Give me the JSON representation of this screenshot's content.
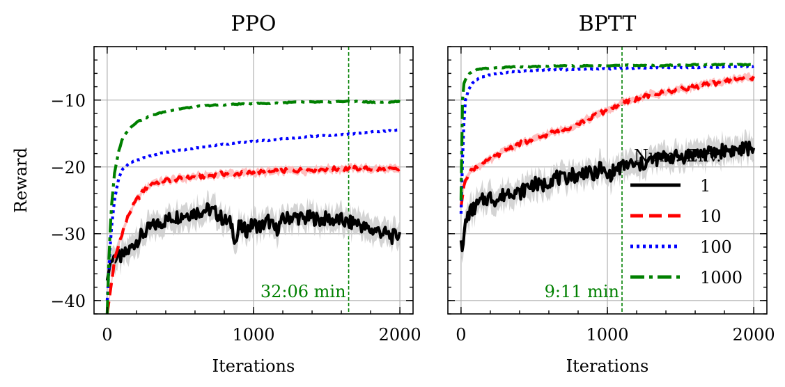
{
  "chart_data": [
    {
      "type": "line",
      "title": "PPO",
      "xlabel": "Iterations",
      "ylabel": "Reward",
      "xlim": [
        -90,
        2090
      ],
      "ylim": [
        -42,
        -2
      ],
      "xticks": [
        0,
        1000,
        2000
      ],
      "xtick_labels": [
        "0",
        "1000",
        "2000"
      ],
      "yticks": [
        -40,
        -30,
        -20,
        -10
      ],
      "ytick_labels": [
        "−40",
        "−30",
        "−20",
        "−10"
      ],
      "grid": true,
      "vline": {
        "x": 1650,
        "color": "#008000",
        "label": "32:06 min"
      },
      "series": [
        {
          "name": "1",
          "color": "#000000",
          "dash": "solid",
          "x": [
            0,
            25,
            50,
            100,
            150,
            200,
            250,
            300,
            350,
            400,
            450,
            500,
            550,
            600,
            650,
            700,
            750,
            800,
            850,
            880,
            900,
            950,
            1000,
            1050,
            1100,
            1150,
            1200,
            1250,
            1300,
            1350,
            1400,
            1450,
            1500,
            1550,
            1600,
            1650,
            1700,
            1750,
            1800,
            1850,
            1900,
            1950,
            2000
          ],
          "y": [
            -37,
            -34,
            -33.5,
            -33.5,
            -32.5,
            -31,
            -30,
            -29,
            -28.5,
            -28,
            -27.5,
            -27.3,
            -27,
            -26.8,
            -26.5,
            -26.4,
            -27,
            -28,
            -28.5,
            -31.5,
            -29,
            -29.5,
            -28.5,
            -29,
            -28,
            -29.5,
            -28,
            -27.5,
            -27.5,
            -27.8,
            -27.5,
            -28,
            -27.7,
            -28,
            -28,
            -28.5,
            -28.2,
            -29,
            -29.5,
            -29.5,
            -30,
            -30.5,
            -30
          ]
        },
        {
          "name": "10",
          "color": "#ff0000",
          "dash": "dashed",
          "x": [
            0,
            25,
            50,
            100,
            150,
            200,
            250,
            300,
            400,
            500,
            600,
            700,
            800,
            900,
            1000,
            1100,
            1200,
            1300,
            1400,
            1500,
            1600,
            1700,
            1800,
            1900,
            2000
          ],
          "y": [
            -42,
            -38,
            -34,
            -30,
            -27,
            -25,
            -23.5,
            -22.5,
            -22,
            -21.8,
            -21.5,
            -21.3,
            -21,
            -21,
            -20.8,
            -20.8,
            -20.6,
            -20.5,
            -20.4,
            -20.3,
            -20.3,
            -20.2,
            -20.3,
            -20.4,
            -20.4
          ]
        },
        {
          "name": "100",
          "color": "#0000ff",
          "dash": "dotted",
          "x": [
            0,
            25,
            50,
            75,
            100,
            150,
            200,
            300,
            400,
            500,
            600,
            700,
            800,
            900,
            1000,
            1100,
            1200,
            1300,
            1400,
            1500,
            1600,
            1700,
            1800,
            1900,
            2000
          ],
          "y": [
            -40,
            -30,
            -25,
            -22,
            -20.5,
            -19.5,
            -19,
            -18.3,
            -17.8,
            -17.5,
            -17.2,
            -16.9,
            -16.6,
            -16.4,
            -16.2,
            -16,
            -15.8,
            -15.6,
            -15.4,
            -15.3,
            -15.2,
            -15,
            -14.8,
            -14.6,
            -14.5
          ]
        },
        {
          "name": "1000",
          "color": "#008000",
          "dash": "dashdot",
          "x": [
            0,
            10,
            25,
            50,
            75,
            100,
            125,
            150,
            200,
            300,
            400,
            500,
            600,
            700,
            800,
            900,
            1000,
            1100,
            1200,
            1300,
            1400,
            1500,
            1600,
            1700,
            1800,
            1900,
            2000
          ],
          "y": [
            -42,
            -35,
            -27,
            -21,
            -18,
            -16,
            -15,
            -14.3,
            -13.3,
            -12.3,
            -11.7,
            -11.3,
            -11,
            -10.8,
            -10.7,
            -10.6,
            -10.5,
            -10.5,
            -10.4,
            -10.3,
            -10.3,
            -10.3,
            -10.2,
            -10.2,
            -10.3,
            -10.3,
            -10.2
          ]
        }
      ]
    },
    {
      "type": "line",
      "title": "BPTT",
      "xlabel": "Iterations",
      "ylabel": "",
      "xlim": [
        -90,
        2090
      ],
      "ylim": [
        -42,
        -2
      ],
      "xticks": [
        0,
        1000,
        2000
      ],
      "xtick_labels": [
        "0",
        "1000",
        "2000"
      ],
      "yticks": [
        -40,
        -30,
        -20,
        -10
      ],
      "ytick_labels": [],
      "grid": true,
      "vline": {
        "x": 1100,
        "color": "#008000",
        "label": "9:11 min"
      },
      "legend": {
        "title": "Num. Env.",
        "location": "center-right",
        "entries": [
          "1",
          "10",
          "100",
          "1000"
        ]
      },
      "series": [
        {
          "name": "1",
          "color": "#000000",
          "dash": "solid",
          "x": [
            0,
            10,
            25,
            50,
            100,
            150,
            200,
            250,
            300,
            350,
            400,
            450,
            500,
            550,
            600,
            650,
            700,
            750,
            800,
            850,
            900,
            950,
            1000,
            1050,
            1100,
            1150,
            1200,
            1300,
            1400,
            1500,
            1600,
            1700,
            1800,
            1900,
            2000
          ],
          "y": [
            -31,
            -33,
            -29,
            -27,
            -26,
            -25,
            -24.5,
            -25,
            -24,
            -23.5,
            -24,
            -23,
            -22.5,
            -23,
            -22,
            -21.5,
            -22,
            -21,
            -21.5,
            -20.5,
            -21.5,
            -20,
            -21.5,
            -20.5,
            -20,
            -19.5,
            -20,
            -19,
            -18.5,
            -18.5,
            -18,
            -18,
            -17.5,
            -17.5,
            -17
          ]
        },
        {
          "name": "10",
          "color": "#ff0000",
          "dash": "dashed",
          "x": [
            0,
            25,
            50,
            100,
            150,
            200,
            300,
            400,
            500,
            600,
            700,
            800,
            900,
            1000,
            1100,
            1200,
            1300,
            1400,
            1500,
            1600,
            1700,
            1800,
            1900,
            2000
          ],
          "y": [
            -26,
            -22,
            -21,
            -20,
            -19.5,
            -19,
            -17.5,
            -16.5,
            -16,
            -15,
            -14.5,
            -13.5,
            -12.5,
            -11.5,
            -10.5,
            -9.8,
            -9.2,
            -8.8,
            -8.3,
            -8,
            -7.6,
            -7.2,
            -6.8,
            -6.6
          ]
        },
        {
          "name": "100",
          "color": "#0000ff",
          "dash": "dotted",
          "x": [
            0,
            15,
            30,
            50,
            75,
            100,
            150,
            200,
            300,
            400,
            500,
            600,
            800,
            1000,
            1200,
            1400,
            1600,
            1800,
            2000
          ],
          "y": [
            -27,
            -15,
            -10,
            -8.5,
            -7.5,
            -7,
            -6.5,
            -6.2,
            -5.9,
            -5.7,
            -5.6,
            -5.5,
            -5.4,
            -5.3,
            -5.2,
            -5.1,
            -5.1,
            -5,
            -5
          ]
        },
        {
          "name": "1000",
          "color": "#008000",
          "dash": "dashdot",
          "x": [
            0,
            10,
            20,
            40,
            60,
            80,
            100,
            150,
            200,
            300,
            400,
            500,
            600,
            800,
            1000,
            1200,
            1400,
            1600,
            1800,
            2000
          ],
          "y": [
            -25,
            -10,
            -7.5,
            -6.5,
            -6,
            -5.7,
            -5.5,
            -5.3,
            -5.2,
            -5.1,
            -5,
            -5,
            -4.9,
            -4.9,
            -4.8,
            -4.8,
            -4.8,
            -4.7,
            -4.7,
            -4.7
          ]
        }
      ]
    }
  ]
}
